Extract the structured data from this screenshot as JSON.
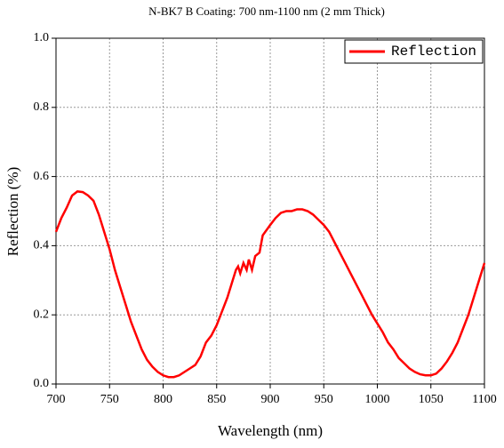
{
  "chart_data": {
    "type": "line",
    "title": "N-BK7 B Coating: 700 nm-1100 nm (2 mm Thick)",
    "x_label": "Wavelength (nm)",
    "y_label": "Reflection (%)",
    "xlim": [
      700,
      1100
    ],
    "xticks": [
      700,
      750,
      800,
      850,
      900,
      950,
      1000,
      1050,
      1100
    ],
    "ylim": [
      0,
      1
    ],
    "yticks": [
      {
        "value": 0,
        "label": "0.0"
      },
      0.2,
      0.4,
      0.6,
      0.8,
      {
        "value": 1,
        "label": "1.0"
      }
    ],
    "grid": true,
    "legend": "upper-right",
    "x": [
      700,
      705,
      710,
      715,
      720,
      725,
      730,
      735,
      740,
      745,
      750,
      755,
      760,
      765,
      770,
      775,
      780,
      785,
      790,
      795,
      800,
      805,
      810,
      815,
      820,
      825,
      830,
      835,
      840,
      845,
      850,
      855,
      860,
      865,
      868,
      870,
      872,
      875,
      878,
      880,
      883,
      886,
      890,
      893,
      900,
      905,
      910,
      915,
      920,
      925,
      930,
      935,
      940,
      945,
      950,
      955,
      960,
      965,
      970,
      975,
      980,
      985,
      990,
      995,
      1000,
      1005,
      1010,
      1015,
      1020,
      1025,
      1030,
      1035,
      1040,
      1045,
      1050,
      1055,
      1060,
      1065,
      1070,
      1075,
      1080,
      1085,
      1090,
      1095,
      1100
    ],
    "series": [
      {
        "name": "Reflection",
        "color": "#ff0000",
        "values": [
          0.44,
          0.48,
          0.51,
          0.545,
          0.557,
          0.555,
          0.545,
          0.53,
          0.49,
          0.44,
          0.39,
          0.33,
          0.28,
          0.23,
          0.18,
          0.14,
          0.1,
          0.07,
          0.05,
          0.035,
          0.025,
          0.02,
          0.02,
          0.025,
          0.035,
          0.045,
          0.055,
          0.08,
          0.12,
          0.14,
          0.17,
          0.21,
          0.25,
          0.3,
          0.33,
          0.34,
          0.32,
          0.35,
          0.33,
          0.36,
          0.33,
          0.37,
          0.38,
          0.43,
          0.46,
          0.48,
          0.495,
          0.5,
          0.5,
          0.505,
          0.505,
          0.5,
          0.49,
          0.475,
          0.46,
          0.44,
          0.41,
          0.38,
          0.35,
          0.32,
          0.29,
          0.26,
          0.23,
          0.2,
          0.175,
          0.15,
          0.12,
          0.1,
          0.075,
          0.06,
          0.045,
          0.035,
          0.028,
          0.025,
          0.025,
          0.03,
          0.045,
          0.065,
          0.09,
          0.12,
          0.16,
          0.2,
          0.25,
          0.3,
          0.35
        ]
      }
    ]
  }
}
